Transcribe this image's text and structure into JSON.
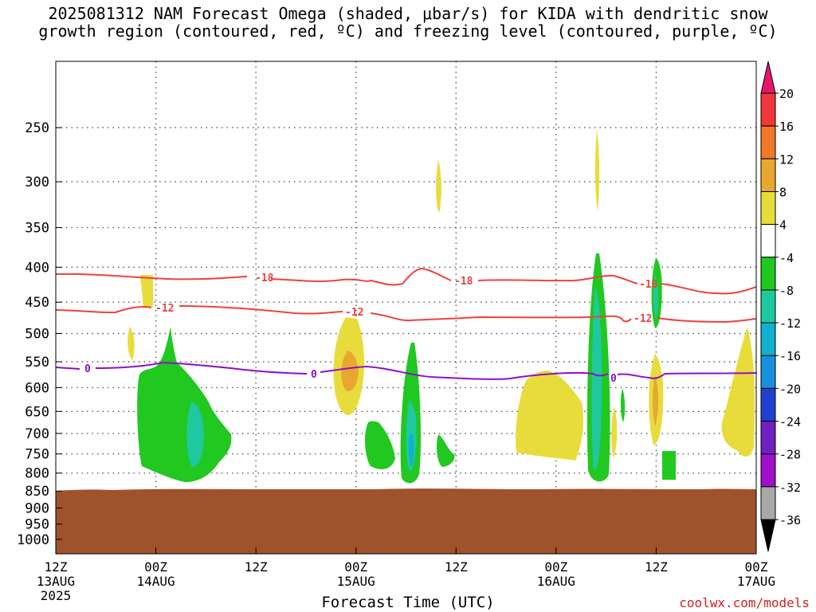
{
  "title_line1": "2025081312 NAM Forecast Omega (shaded, μbar/s) for KIDA with dendritic snow",
  "title_line2": "growth region (contoured, red, ºC) and freezing level (contoured, purple, ºC)",
  "xlabel": "Forecast Time (UTC)",
  "credit": "coolwx.com/models",
  "chart_data": {
    "type": "contour",
    "x_ticks": [
      {
        "time": "12Z",
        "date": "13AUG",
        "year": "2025"
      },
      {
        "time": "00Z",
        "date": "14AUG"
      },
      {
        "time": "12Z",
        "date": ""
      },
      {
        "time": "00Z",
        "date": "15AUG"
      },
      {
        "time": "12Z",
        "date": ""
      },
      {
        "time": "00Z",
        "date": "16AUG"
      },
      {
        "time": "12Z",
        "date": ""
      },
      {
        "time": "00Z",
        "date": "17AUG"
      }
    ],
    "y_ticks": [
      250,
      300,
      350,
      400,
      450,
      500,
      550,
      600,
      650,
      700,
      750,
      800,
      850,
      900,
      950,
      1000
    ],
    "xlim": [
      "2025-08-13 12Z",
      "2025-08-17 00Z"
    ],
    "y_axis": "pressure (hPa), log scale, inverted",
    "colorbar": {
      "labels": [
        "20",
        "16",
        "12",
        "8",
        "4",
        "-4",
        "-8",
        "-12",
        "-16",
        "-20",
        "-24",
        "-28",
        "-32",
        "-36"
      ],
      "colors": [
        "#e8156f",
        "#f0383c",
        "#f07828",
        "#e8a830",
        "#e8dc3c",
        "#ffffff",
        "#20c820",
        "#20c8a0",
        "#10b0d0",
        "#1890e0",
        "#2040d0",
        "#7020c0",
        "#a010c8",
        "#a8a8a8",
        "#000000"
      ]
    },
    "contours": [
      {
        "name": "-18",
        "color": "#f04040",
        "pressure_at": [
          [
            0,
            420
          ],
          [
            5,
            425
          ],
          [
            15,
            430
          ],
          [
            26,
            428
          ],
          [
            36,
            430
          ],
          [
            46,
            416
          ],
          [
            50,
            433
          ],
          [
            60,
            432
          ],
          [
            72,
            440
          ],
          [
            80,
            445
          ],
          [
            84,
            448
          ]
        ]
      },
      {
        "name": "-12",
        "color": "#f04040",
        "pressure_at": [
          [
            0,
            473
          ],
          [
            10,
            476
          ],
          [
            15,
            465
          ],
          [
            26,
            467
          ],
          [
            38,
            468
          ],
          [
            50,
            480
          ],
          [
            60,
            482
          ],
          [
            73,
            478
          ],
          [
            80,
            483
          ],
          [
            84,
            490
          ]
        ]
      },
      {
        "name": "0",
        "color": "#9010c8",
        "pressure_at": [
          [
            0,
            575
          ],
          [
            10,
            572
          ],
          [
            15,
            565
          ],
          [
            25,
            575
          ],
          [
            35,
            580
          ],
          [
            45,
            575
          ],
          [
            50,
            585
          ],
          [
            58,
            582
          ],
          [
            70,
            582
          ],
          [
            76,
            590
          ],
          [
            84,
            586
          ]
        ]
      }
    ],
    "ground_pressure": 850,
    "grid": true
  }
}
